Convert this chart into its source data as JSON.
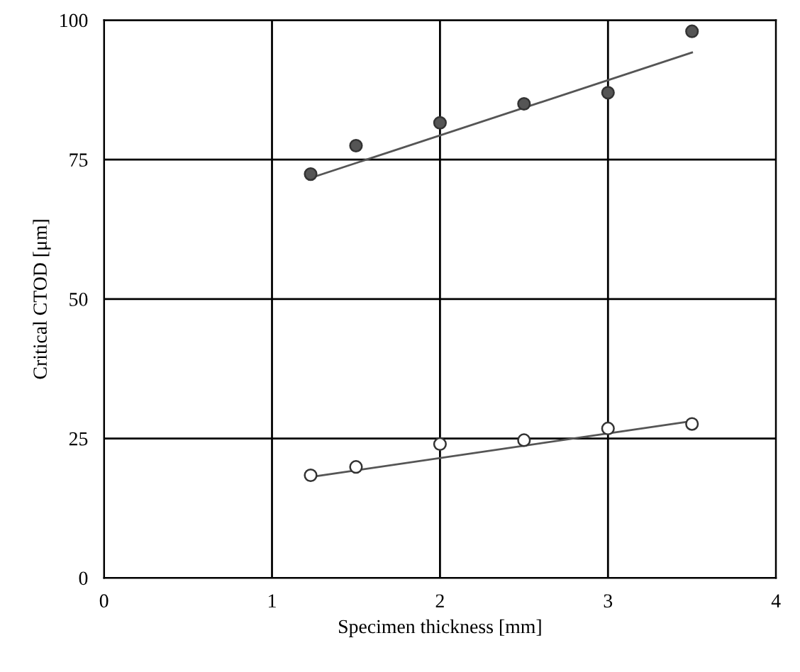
{
  "chart_data": {
    "type": "scatter",
    "xlabel": "Specimen thickness [mm]",
    "ylabel": "Critical CTOD [μm]",
    "xlim": [
      0,
      4
    ],
    "ylim": [
      0,
      100
    ],
    "xticks": [
      0,
      1,
      2,
      3,
      4
    ],
    "yticks": [
      0,
      25,
      50,
      75,
      100
    ],
    "grid": true,
    "marker": "circle",
    "series": [
      {
        "color": "#555555",
        "x": [
          1.23,
          1.5,
          2,
          2.5,
          3,
          3.5
        ],
        "values": [
          72.4,
          77.5,
          81.6,
          85,
          87,
          98
        ]
      },
      {
        "color": "#ffffff",
        "x": [
          1.23,
          1.5,
          2,
          2.5,
          3,
          3.5
        ],
        "values": [
          18.4,
          19.9,
          24,
          24.7,
          26.8,
          27.6
        ]
      },
      {
        "type": "line",
        "marker": "none",
        "color": "#555555",
        "x": [
          1.23,
          3.5
        ],
        "values": [
          71.7,
          94.2
        ]
      },
      {
        "type": "line",
        "marker": "none",
        "color": "#555555",
        "x": [
          1.23,
          3.5
        ],
        "values": [
          18.1,
          28.1
        ]
      }
    ]
  }
}
